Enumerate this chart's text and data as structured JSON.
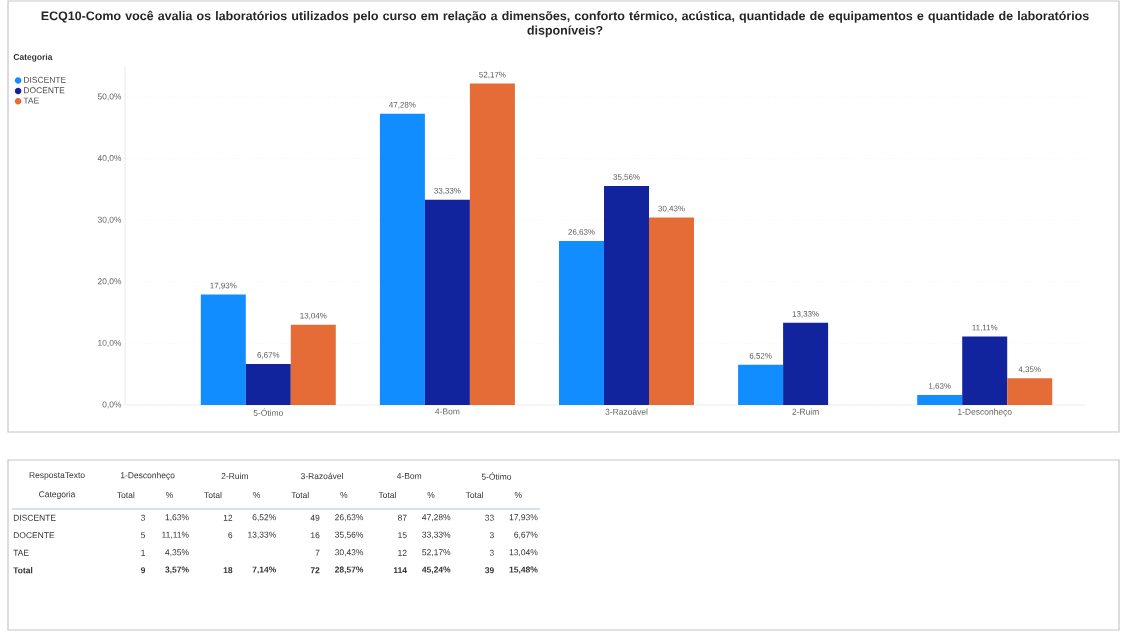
{
  "chart_data": [
    {
      "type": "bar",
      "title": "ECQ10-Como você avalia os laboratórios utilizados pelo curso em relação a dimensões, conforto térmico, acústica, quantidade de equipamentos e quantidade de laboratórios disponíveis?",
      "legend_title": "Categoria",
      "legend": "top left",
      "grid": "y",
      "categories": [
        "5-Ótimo",
        "4-Bom",
        "3-Razoável",
        "2-Ruim",
        "1-Desconheço"
      ],
      "ylim": [
        0,
        55
      ],
      "yticks": [
        {
          "value": 0,
          "label": "0,0%"
        },
        {
          "value": 10,
          "label": "10,0%"
        },
        {
          "value": 20,
          "label": "20,0%"
        },
        {
          "value": 30,
          "label": "30,0%"
        },
        {
          "value": 40,
          "label": "40,0%"
        },
        {
          "value": 50,
          "label": "50,0%"
        }
      ],
      "series": [
        {
          "name": "DISCENTE",
          "color": "#118dff",
          "values": [
            17.93,
            47.28,
            26.63,
            6.52,
            1.63
          ],
          "value_labels": [
            "17,93%",
            "47,28%",
            "26,63%",
            "6,52%",
            "1,63%"
          ]
        },
        {
          "name": "DOCENTE",
          "color": "#12239e",
          "values": [
            6.67,
            33.33,
            35.56,
            13.33,
            11.11
          ],
          "value_labels": [
            "6,67%",
            "33,33%",
            "35,56%",
            "13,33%",
            "11,11%"
          ]
        },
        {
          "name": "TAE",
          "color": "#e66c37",
          "values": [
            13.04,
            52.17,
            30.43,
            null,
            4.35
          ],
          "value_labels": [
            "13,04%",
            "52,17%",
            "30,43%",
            null,
            "4,35%"
          ]
        }
      ]
    },
    {
      "type": "other",
      "annotations": [
        "RespostaTexto",
        "Categoria",
        "1-Desconheço",
        "2-Ruim",
        "3-Razoável",
        "4-Bom",
        "5-Ótimo"
      ],
      "categories": [
        "Total",
        "%",
        "Total",
        "%",
        "Total",
        "%",
        "Total",
        "%",
        "Total",
        "%"
      ],
      "y_categories": [
        "DISCENTE",
        "DOCENTE",
        "TAE",
        "Total"
      ],
      "cell_labels": [
        [
          "3",
          "1,63%",
          "12",
          "6,52%",
          "49",
          "26,63%",
          "87",
          "47,28%",
          "33",
          "17,93%"
        ],
        [
          "5",
          "11,11%",
          "6",
          "13,33%",
          "16",
          "35,56%",
          "15",
          "33,33%",
          "3",
          "6,67%"
        ],
        [
          "1",
          "4,35%",
          null,
          null,
          "7",
          "30,43%",
          "12",
          "52,17%",
          "3",
          "13,04%"
        ],
        [
          "9",
          "3,57%",
          "18",
          "7,14%",
          "72",
          "28,57%",
          "114",
          "45,24%",
          "39",
          "15,48%"
        ]
      ]
    }
  ]
}
